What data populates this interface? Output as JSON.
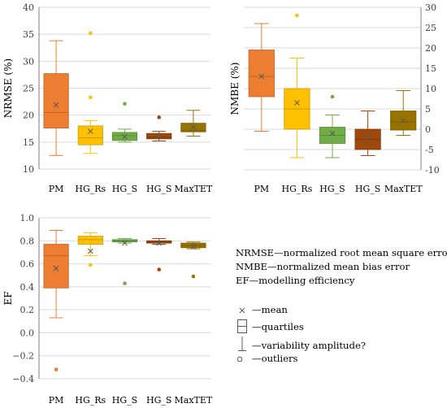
{
  "notes": [
    "NRMSE—normalized root mean square error",
    "NMBE—normalized mean bias error",
    "EF—modelling efficiency"
  ],
  "legend": {
    "mean": "—mean",
    "quartiles": "—quartiles",
    "variability": "—variability amplitude?",
    "outliers": "—outliers"
  },
  "colors": {
    "PM": "#ED7D31",
    "HG_Rs": "#FFC000",
    "HG_S_green": "#70AD47",
    "HG_S_brown": "#9E480E",
    "MaxTET": "#997300"
  },
  "chart_data": [
    {
      "type": "box",
      "ylabel": "NRMSE (%)",
      "yaxis_side": "left",
      "ylim": [
        10,
        40
      ],
      "yticks": [
        10,
        15,
        20,
        25,
        30,
        35,
        40
      ],
      "grid": true,
      "categories": [
        "PM",
        "HG_Rs",
        "HG_S",
        "HG_S",
        "MaxTET"
      ],
      "boxes": [
        {
          "min": 12.5,
          "q1": 17.6,
          "median": 20.5,
          "q3": 27.7,
          "max": 33.8,
          "mean": 21.9,
          "outliers": []
        },
        {
          "min": 12.9,
          "q1": 14.5,
          "median": 15.8,
          "q3": 18.0,
          "max": 19.0,
          "mean": 17.0,
          "outliers": [
            35.2,
            23.3
          ]
        },
        {
          "min": 15.0,
          "q1": 15.3,
          "median": 16.2,
          "q3": 16.8,
          "max": 17.4,
          "mean": 16.0,
          "outliers": [
            22.1
          ]
        },
        {
          "min": 15.2,
          "q1": 15.6,
          "median": 15.9,
          "q3": 16.6,
          "max": 17.0,
          "mean": 16.0,
          "outliers": [
            19.6
          ]
        },
        {
          "min": 16.1,
          "q1": 16.9,
          "median": 17.2,
          "q3": 18.5,
          "max": 20.9,
          "mean": 17.8,
          "outliers": []
        }
      ]
    },
    {
      "type": "box",
      "ylabel": "NMBE (%)",
      "yaxis_side": "right",
      "ylim": [
        -10,
        30
      ],
      "yticks": [
        -10,
        -5,
        0,
        5,
        10,
        15,
        20,
        25,
        30
      ],
      "grid": true,
      "categories": [
        "PM",
        "HG_Rs",
        "HG_S",
        "HG_S",
        "MaxTET"
      ],
      "boxes": [
        {
          "min": -0.5,
          "q1": 8.0,
          "median": 13.0,
          "q3": 19.5,
          "max": 26.0,
          "mean": 13.0,
          "outliers": []
        },
        {
          "min": -7.0,
          "q1": 0.0,
          "median": 5.0,
          "q3": 10.0,
          "max": 17.5,
          "mean": 6.5,
          "outliers": [
            28.0
          ]
        },
        {
          "min": -7.0,
          "q1": -3.5,
          "median": -1.5,
          "q3": 0.5,
          "max": 3.5,
          "mean": -1.0,
          "outliers": [
            8.0
          ]
        },
        {
          "min": -6.5,
          "q1": -5.0,
          "median": -2.5,
          "q3": 0.0,
          "max": 4.5,
          "mean": -2.0,
          "outliers": []
        },
        {
          "min": -1.5,
          "q1": -0.2,
          "median": 1.8,
          "q3": 4.5,
          "max": 9.5,
          "mean": 2.0,
          "outliers": []
        }
      ]
    },
    {
      "type": "box",
      "ylabel": "EF",
      "yaxis_side": "left",
      "ylim": [
        -0.4,
        1.0
      ],
      "yticks": [
        -0.4,
        -0.2,
        0.0,
        0.2,
        0.4,
        0.6,
        0.8,
        1.0
      ],
      "ytick_labels": [
        "−0.4",
        "−0.2",
        "0.0",
        "0.2",
        "0.4",
        "0.6",
        "0.8",
        "1.0"
      ],
      "grid": true,
      "categories": [
        "PM",
        "HG_Rs",
        "HG_S",
        "HG_S",
        "MaxTET"
      ],
      "boxes": [
        {
          "min": 0.13,
          "q1": 0.39,
          "median": 0.67,
          "q3": 0.77,
          "max": 0.89,
          "mean": 0.56,
          "outliers": [
            -0.32
          ]
        },
        {
          "min": 0.67,
          "q1": 0.77,
          "median": 0.81,
          "q3": 0.84,
          "max": 0.87,
          "mean": 0.71,
          "outliers": [
            0.59
          ]
        },
        {
          "min": 0.78,
          "q1": 0.79,
          "median": 0.8,
          "q3": 0.81,
          "max": 0.82,
          "mean": 0.78,
          "outliers": [
            0.43
          ]
        },
        {
          "min": 0.77,
          "q1": 0.78,
          "median": 0.79,
          "q3": 0.8,
          "max": 0.82,
          "mean": 0.78,
          "outliers": [
            0.55
          ]
        },
        {
          "min": 0.73,
          "q1": 0.74,
          "median": 0.76,
          "q3": 0.78,
          "max": 0.79,
          "mean": 0.75,
          "outliers": [
            0.49
          ]
        }
      ]
    }
  ]
}
